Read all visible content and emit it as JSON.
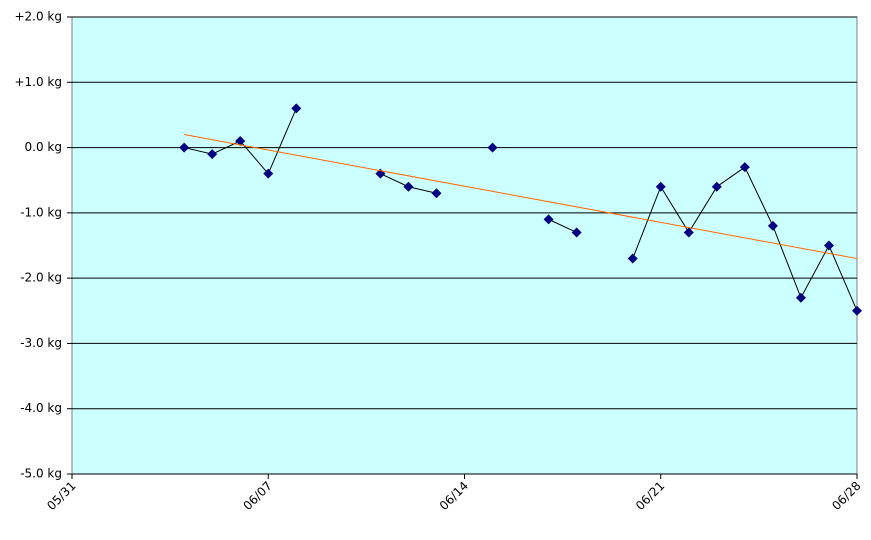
{
  "chart_data": {
    "type": "line",
    "categories": [
      "05/31",
      null,
      null,
      null,
      null,
      null,
      null,
      "06/07",
      null,
      null,
      null,
      null,
      null,
      null,
      "06/14",
      null,
      null,
      null,
      null,
      null,
      null,
      "06/21",
      null,
      null,
      null,
      null,
      null,
      null,
      "06/28"
    ],
    "series": [
      {
        "color": "#000080",
        "values": [
          null,
          null,
          null,
          null,
          0.0,
          -0.1,
          0.1,
          -0.4,
          0.6,
          null,
          null,
          -0.4,
          -0.6,
          -0.7,
          null,
          0.0,
          null,
          -1.1,
          -1.3,
          null,
          -1.7,
          -0.6,
          -1.3,
          -0.6,
          -0.3,
          -1.2,
          -2.3,
          -1.5,
          -2.5
        ]
      }
    ],
    "trend": {
      "x": [
        4,
        28
      ],
      "values": [
        0.2,
        -1.7
      ],
      "color": "#ff6600"
    },
    "ylim": [
      -5,
      2
    ],
    "yticks": [
      {
        "value": 2,
        "label": "+2.0 kg"
      },
      {
        "value": 1,
        "label": "+1.0 kg"
      },
      {
        "value": 0,
        "label": "0.0 kg"
      },
      {
        "value": -1,
        "label": "-1.0 kg"
      },
      {
        "value": -2,
        "label": "-2.0 kg"
      },
      {
        "value": -3,
        "label": "-3.0 kg"
      },
      {
        "value": -4,
        "label": "-4.0 kg"
      },
      {
        "value": -5,
        "label": "-5.0 kg"
      }
    ],
    "grid": true,
    "background": "#ccffff"
  }
}
